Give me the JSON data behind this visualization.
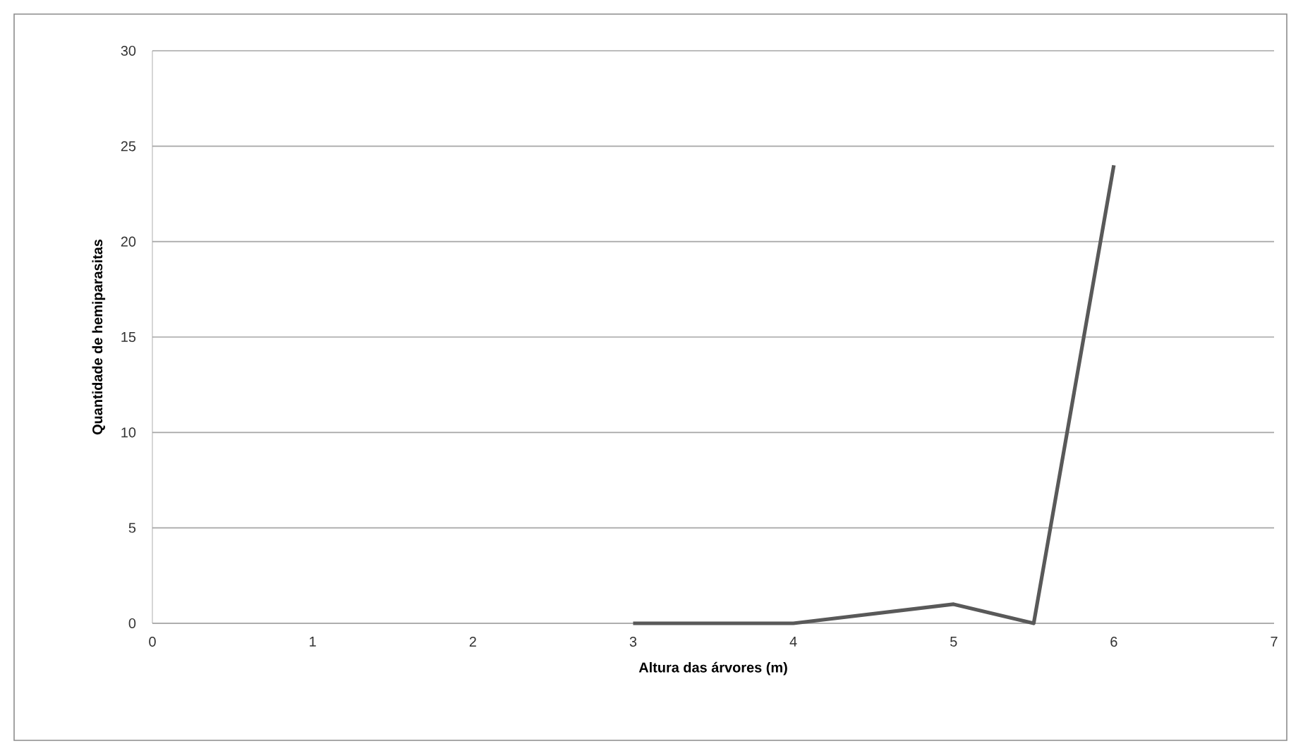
{
  "chart_data": {
    "type": "line",
    "xlabel": "Altura das árvores (m)",
    "ylabel": "Quantidade  de hemiparasitas",
    "series": [
      {
        "color": "#595959",
        "x": [
          3,
          4,
          5,
          5.5,
          6
        ],
        "values": [
          0,
          0,
          1,
          0,
          24
        ]
      }
    ],
    "xlim": [
      0,
      7
    ],
    "xticks": [
      0,
      1,
      2,
      3,
      4,
      5,
      6,
      7
    ],
    "ylim": [
      0,
      30
    ],
    "yticks": [
      0,
      5,
      10,
      15,
      20,
      25,
      30
    ],
    "grid": "y",
    "marker": "none",
    "line_style": "solid"
  }
}
